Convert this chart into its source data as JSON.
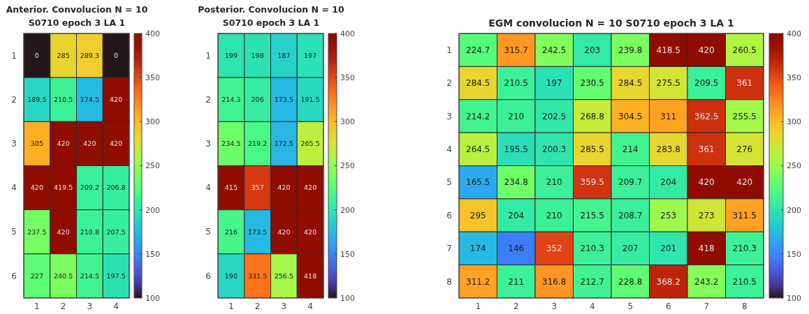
{
  "chart_data": [
    {
      "type": "heatmap",
      "title": "Anterior. Convolucion N = 10",
      "subtitle": "S0710 epoch 3 LA 1",
      "categories": [
        "1",
        "2",
        "3",
        "4"
      ],
      "y_categories": [
        "1",
        "2",
        "3",
        "4",
        "5",
        "6"
      ],
      "cells": [
        [
          0,
          285,
          289.3,
          0
        ],
        [
          189.5,
          210.5,
          174.5,
          420
        ],
        [
          305,
          420,
          420,
          420
        ],
        [
          420,
          419.5,
          209.2,
          206.8
        ],
        [
          237.5,
          420,
          210.8,
          207.5
        ],
        [
          227,
          240.5,
          214.5,
          197.5
        ]
      ],
      "data_labels": true,
      "clim": [
        100,
        400
      ],
      "cticks": [
        100,
        150,
        200,
        250,
        300,
        350,
        400
      ]
    },
    {
      "type": "heatmap",
      "title": "Posterior. Convolucion N = 10",
      "subtitle": "S0710 epoch 3 LA 1",
      "categories": [
        "1",
        "2",
        "3",
        "4"
      ],
      "y_categories": [
        "1",
        "2",
        "3",
        "4",
        "5",
        "6"
      ],
      "cells": [
        [
          199,
          198,
          187,
          197
        ],
        [
          214.3,
          206,
          173.5,
          191.5
        ],
        [
          234.5,
          219.2,
          172.5,
          265.5
        ],
        [
          415,
          357,
          420,
          420
        ],
        [
          216,
          173.5,
          420,
          420
        ],
        [
          190,
          331.5,
          256.5,
          418
        ]
      ],
      "data_labels": true,
      "clim": [
        100,
        400
      ],
      "cticks": [
        100,
        150,
        200,
        250,
        300,
        350,
        400
      ]
    },
    {
      "type": "heatmap",
      "title": "EGM convolucion N = 10 S0710 epoch 3 LA 1",
      "categories": [
        "1",
        "2",
        "3",
        "4",
        "5",
        "6",
        "7",
        "8"
      ],
      "y_categories": [
        "1",
        "2",
        "3",
        "4",
        "5",
        "6",
        "7",
        "8"
      ],
      "cells": [
        [
          224.7,
          315.7,
          242.5,
          203,
          239.8,
          418.5,
          420,
          260.5
        ],
        [
          284.5,
          210.5,
          197,
          230.5,
          284.5,
          275.5,
          209.5,
          361
        ],
        [
          214.2,
          210,
          202.5,
          268.8,
          304.5,
          311,
          362.5,
          255.5
        ],
        [
          264.5,
          195.5,
          200.3,
          285.5,
          214,
          283.8,
          361,
          276
        ],
        [
          165.5,
          234.8,
          210,
          359.5,
          209.7,
          204,
          420,
          420
        ],
        [
          295,
          204,
          210,
          215.5,
          208.7,
          253,
          273,
          311.5
        ],
        [
          174,
          146,
          352,
          210.3,
          207,
          201,
          418,
          210.3
        ],
        [
          311.2,
          211,
          316.8,
          212.7,
          228.8,
          368.2,
          243.2,
          210.5
        ]
      ],
      "data_labels": true,
      "clim": [
        100,
        400
      ],
      "cticks": [
        100,
        150,
        200,
        250,
        300,
        350,
        400
      ]
    }
  ]
}
